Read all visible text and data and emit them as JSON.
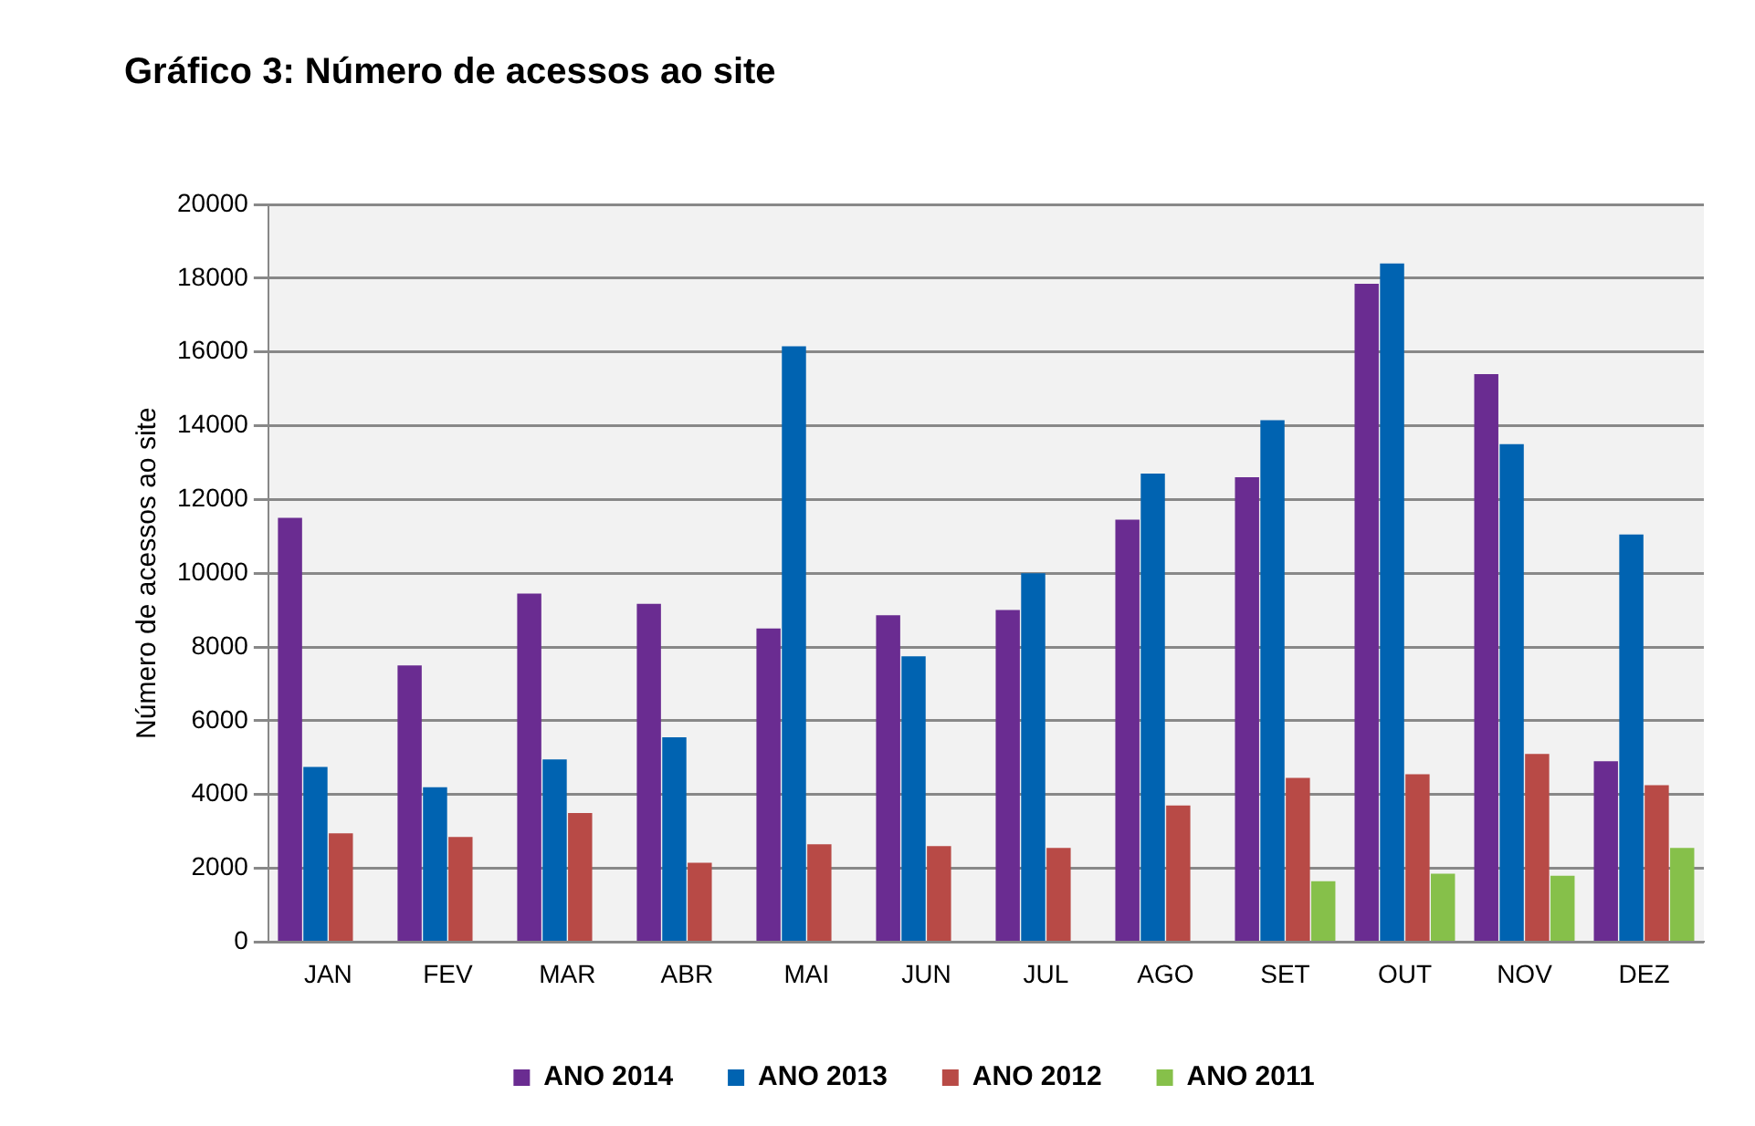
{
  "chart_data": {
    "type": "bar",
    "title": "Gráfico 3: Número de acessos ao site",
    "ylabel": "Número de acessos ao site",
    "categories": [
      "JAN",
      "FEV",
      "MAR",
      "ABR",
      "MAI",
      "JUN",
      "JUL",
      "AGO",
      "SET",
      "OUT",
      "NOV",
      "DEZ"
    ],
    "series": [
      {
        "name": "ANO 2014",
        "color": "#6a2c91",
        "values": [
          11500,
          7500,
          9450,
          9170,
          8500,
          8860,
          9000,
          11450,
          12600,
          17850,
          15400,
          4900
        ]
      },
      {
        "name": "ANO 2013",
        "color": "#0063b1",
        "values": [
          4750,
          4200,
          4950,
          5550,
          16150,
          7750,
          10000,
          12700,
          14150,
          18400,
          13500,
          11050
        ]
      },
      {
        "name": "ANO 2012",
        "color": "#b84a46",
        "values": [
          2950,
          2850,
          3500,
          2150,
          2650,
          2600,
          2550,
          3700,
          4450,
          4550,
          5100,
          4250
        ]
      },
      {
        "name": "ANO 2011",
        "color": "#86c04a",
        "values": [
          null,
          null,
          null,
          null,
          null,
          null,
          null,
          null,
          1650,
          1850,
          1800,
          2550
        ]
      }
    ],
    "ylim": [
      0,
      20000
    ],
    "yticks": [
      0,
      2000,
      4000,
      6000,
      8000,
      10000,
      12000,
      14000,
      16000,
      18000,
      20000
    ],
    "grid": "y",
    "legend": "bottom"
  }
}
